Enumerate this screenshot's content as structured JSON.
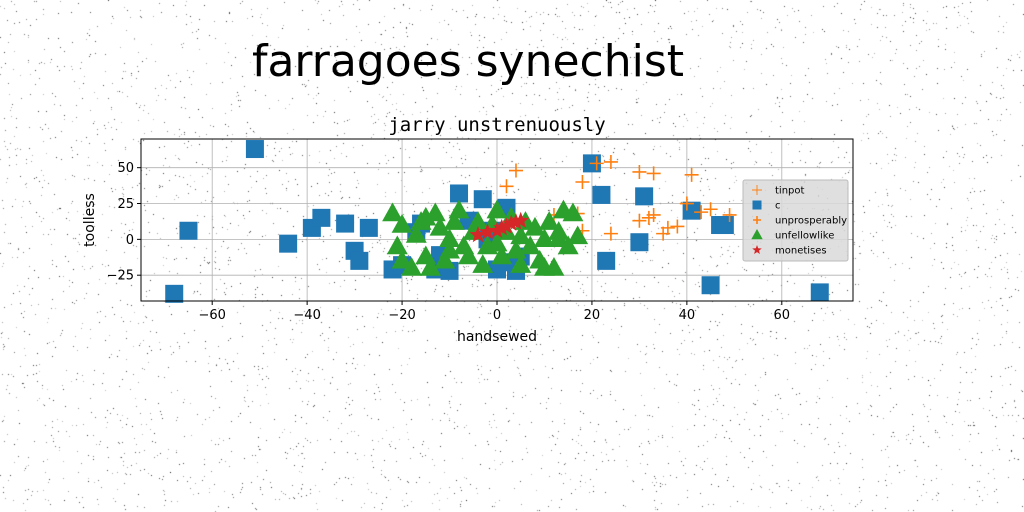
{
  "figure": {
    "suptitle": "farragoes synechist"
  },
  "chart_data": {
    "type": "scatter",
    "title": "jarry unstrenuously",
    "xlabel": "handsewed",
    "ylabel": "toolless",
    "xlim": [
      -75,
      75
    ],
    "ylim": [
      -43,
      70
    ],
    "xticks": [
      -60,
      -40,
      -20,
      0,
      20,
      40,
      60
    ],
    "yticks": [
      -25,
      0,
      25,
      50
    ],
    "grid": true,
    "legend_position": "right",
    "series": [
      {
        "name": "tinpot",
        "marker": "plus-thin",
        "color": "#ff7f0e",
        "x": [],
        "y": []
      },
      {
        "name": "c",
        "marker": "square",
        "color": "#1f77b4",
        "x": [
          -68,
          -65,
          -51,
          -44,
          -39,
          -37,
          -32,
          -30,
          -29,
          -27,
          -22,
          -20,
          -17,
          -16,
          -13,
          -12,
          -8,
          -6,
          -3,
          -2,
          -1,
          2,
          4,
          5,
          20,
          22,
          23,
          30,
          31,
          41,
          45,
          47,
          48,
          68,
          -10,
          0,
          2
        ],
        "y": [
          -38,
          6,
          63,
          -3,
          8,
          15,
          11,
          -8,
          -15,
          8,
          -21,
          -18,
          5,
          11,
          -21,
          -11,
          32,
          13,
          28,
          0,
          6,
          -16,
          -22,
          -12,
          53,
          31,
          -15,
          -2,
          30,
          20,
          -32,
          10,
          10,
          -37,
          -22,
          -21,
          22
        ]
      },
      {
        "name": "unprosperably",
        "marker": "plus",
        "color": "#ff7f0e",
        "x": [
          2,
          4,
          12,
          17,
          18,
          18,
          21,
          24,
          24,
          30,
          30,
          32,
          33,
          33,
          35,
          36,
          38,
          40,
          41,
          43,
          45,
          49
        ],
        "y": [
          37,
          48,
          17,
          18,
          40,
          6,
          53,
          54,
          4,
          13,
          47,
          15,
          46,
          17,
          4,
          8,
          9,
          25,
          45,
          19,
          21,
          17
        ]
      },
      {
        "name": "unfellowlike",
        "marker": "triangle",
        "color": "#2ca02c",
        "x": [
          -22,
          -21,
          -20,
          -18,
          -17,
          -16,
          -15,
          -14,
          -13,
          -12,
          -11,
          -10,
          -9,
          -8,
          -7,
          -6,
          -5,
          -4,
          -3,
          -2,
          -1,
          0,
          1,
          2,
          3,
          4,
          5,
          6,
          7,
          8,
          9,
          10,
          11,
          12,
          13,
          14,
          15,
          16,
          17,
          -20,
          -15,
          -10,
          0,
          5,
          10,
          13
        ],
        "y": [
          18,
          -5,
          10,
          -20,
          3,
          12,
          -12,
          -20,
          18,
          8,
          -15,
          0,
          12,
          20,
          -5,
          -12,
          5,
          12,
          -18,
          -5,
          10,
          20,
          -12,
          5,
          15,
          -8,
          2,
          12,
          -5,
          8,
          -15,
          0,
          12,
          -20,
          5,
          20,
          -5,
          18,
          2,
          -15,
          15,
          -8,
          -3,
          -18,
          -20,
          0
        ]
      },
      {
        "name": "monetises",
        "marker": "star",
        "color": "#d62728",
        "x": [
          -4,
          -2,
          0,
          1,
          2,
          3,
          4,
          5
        ],
        "y": [
          3,
          5,
          6,
          8,
          9,
          11,
          12,
          13
        ]
      }
    ]
  }
}
